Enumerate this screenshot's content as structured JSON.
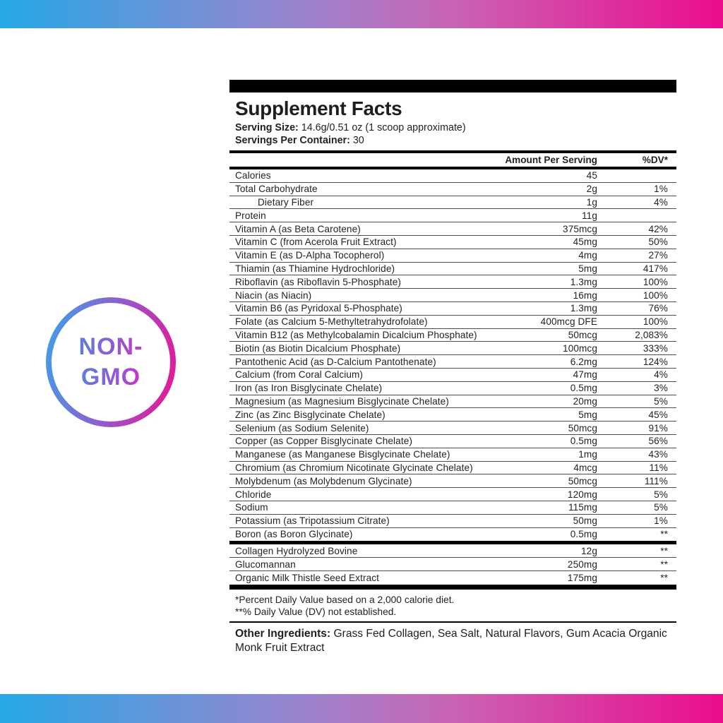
{
  "badge": {
    "line1": "NON-",
    "line2": "GMO"
  },
  "colors": {
    "gradient_left": "#25A8E6",
    "gradient_mid_purple": "#9B84CD",
    "gradient_right": "#EC0C8E",
    "label_text": "#232227",
    "badge_text_start": "#5F7ED8",
    "badge_text_end": "#C437C8"
  },
  "label": {
    "title": "Supplement Facts",
    "serving_size_label": "Serving Size:",
    "serving_size_value": "14.6g/0.51 oz (1 scoop approximate)",
    "servings_label": "Servings Per Container:",
    "servings_value": "30",
    "col_amount": "Amount Per Serving",
    "col_dv": "%DV*",
    "rows": [
      {
        "name": "Calories",
        "amount": "45",
        "dv": ""
      },
      {
        "name": "Total Carbohydrate",
        "amount": "2g",
        "dv": "1%"
      },
      {
        "name": "Dietary Fiber",
        "amount": "1g",
        "dv": "4%",
        "indent": true
      },
      {
        "name": "Protein",
        "amount": "11g",
        "dv": ""
      },
      {
        "name": "Vitamin A (as Beta Carotene)",
        "amount": "375mcg",
        "dv": "42%"
      },
      {
        "name": "Vitamin C (from Acerola Fruit Extract)",
        "amount": "45mg",
        "dv": "50%"
      },
      {
        "name": "Vitamin E (as D-Alpha Tocopherol)",
        "amount": "4mg",
        "dv": "27%"
      },
      {
        "name": "Thiamin (as Thiamine Hydrochloride)",
        "amount": "5mg",
        "dv": "417%"
      },
      {
        "name": "Riboflavin (as Riboflavin 5-Phosphate)",
        "amount": "1.3mg",
        "dv": "100%"
      },
      {
        "name": "Niacin (as Niacin)",
        "amount": "16mg",
        "dv": "100%"
      },
      {
        "name": "Vitamin B6 (as Pyridoxal 5-Phosphate)",
        "amount": "1.3mg",
        "dv": "76%"
      },
      {
        "name": "Folate (as Calcium 5-Methyltetrahydrofolate)",
        "amount": "400mcg DFE",
        "dv": "100%"
      },
      {
        "name": "Vitamin B12 (as Methylcobalamin Dicalcium Phosphate)",
        "amount": "50mcg",
        "dv": "2,083%"
      },
      {
        "name": "Biotin (as Biotin Dicalcium Phosphate)",
        "amount": "100mcg",
        "dv": "333%"
      },
      {
        "name": "Pantothenic Acid (as D-Calcium Pantothenate)",
        "amount": "6.2mg",
        "dv": "124%"
      },
      {
        "name": "Calcium (from Coral Calcium)",
        "amount": "47mg",
        "dv": "4%"
      },
      {
        "name": "Iron (as Iron Bisglycinate Chelate)",
        "amount": "0.5mg",
        "dv": "3%"
      },
      {
        "name": "Magnesium (as Magnesium Bisglycinate Chelate)",
        "amount": "20mg",
        "dv": "5%"
      },
      {
        "name": "Zinc (as Zinc Bisglycinate Chelate)",
        "amount": "5mg",
        "dv": "45%"
      },
      {
        "name": "Selenium (as Sodium Selenite)",
        "amount": "50mcg",
        "dv": "91%"
      },
      {
        "name": "Copper (as Copper Bisglycinate Chelate)",
        "amount": "0.5mg",
        "dv": "56%"
      },
      {
        "name": "Manganese (as Manganese Bisglycinate Chelate)",
        "amount": "1mg",
        "dv": "43%"
      },
      {
        "name": "Chromium (as Chromium Nicotinate Glycinate Chelate)",
        "amount": "4mcg",
        "dv": "11%"
      },
      {
        "name": "Molybdenum (as Molybdenum Glycinate)",
        "amount": "50mcg",
        "dv": "111%"
      },
      {
        "name": "Chloride",
        "amount": "120mg",
        "dv": "5%"
      },
      {
        "name": "Sodium",
        "amount": "115mg",
        "dv": "5%"
      },
      {
        "name": "Potassium (as Tripotassium Citrate)",
        "amount": "50mg",
        "dv": "1%"
      },
      {
        "name": "Boron (as Boron Glycinate)",
        "amount": "0.5mg",
        "dv": "**"
      }
    ],
    "rows2": [
      {
        "name": "Collagen Hydrolyzed Bovine",
        "amount": "12g",
        "dv": "**"
      },
      {
        "name": "Glucomannan",
        "amount": "250mg",
        "dv": "**"
      },
      {
        "name": "Organic Milk Thistle Seed Extract",
        "amount": "175mg",
        "dv": "**"
      }
    ],
    "footnote1": "*Percent Daily Value based on a 2,000 calorie diet.",
    "footnote2": "**% Daily Value (DV) not established.",
    "other_ingredients_label": "Other Ingredients:",
    "other_ingredients_text": "Grass Fed Collagen, Sea Salt, Natural Flavors, Gum Acacia Organic Monk Fruit Extract"
  }
}
